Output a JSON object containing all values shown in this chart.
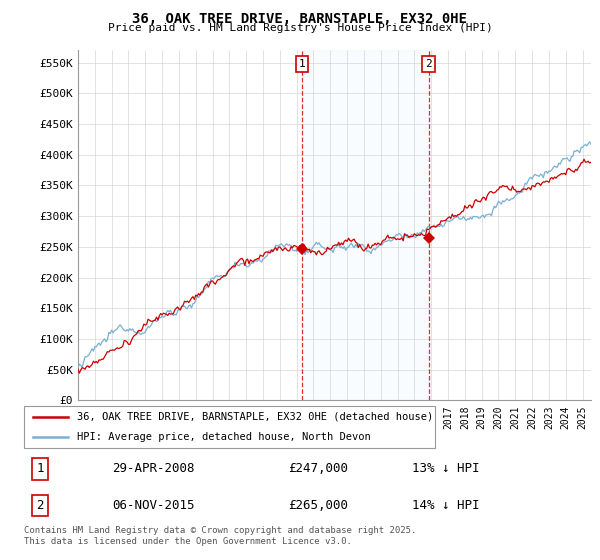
{
  "title": "36, OAK TREE DRIVE, BARNSTAPLE, EX32 0HE",
  "subtitle": "Price paid vs. HM Land Registry's House Price Index (HPI)",
  "ylabel_ticks": [
    "£0",
    "£50K",
    "£100K",
    "£150K",
    "£200K",
    "£250K",
    "£300K",
    "£350K",
    "£400K",
    "£450K",
    "£500K",
    "£550K"
  ],
  "ytick_values": [
    0,
    50000,
    100000,
    150000,
    200000,
    250000,
    300000,
    350000,
    400000,
    450000,
    500000,
    550000
  ],
  "ylim": [
    0,
    570000
  ],
  "xlim_start": 1995.0,
  "xlim_end": 2025.5,
  "hpi_color": "#7bafd4",
  "hpi_shade_color": "#ddeeff",
  "price_color": "#cc0000",
  "vline_color": "#cc0000",
  "sale1_x": 2008.33,
  "sale1_y": 247000,
  "sale1_label": "1",
  "sale2_x": 2015.84,
  "sale2_y": 265000,
  "sale2_label": "2",
  "legend_line1": "36, OAK TREE DRIVE, BARNSTAPLE, EX32 0HE (detached house)",
  "legend_line2": "HPI: Average price, detached house, North Devon",
  "table_row1_num": "1",
  "table_row1_date": "29-APR-2008",
  "table_row1_price": "£247,000",
  "table_row1_hpi": "13% ↓ HPI",
  "table_row2_num": "2",
  "table_row2_date": "06-NOV-2015",
  "table_row2_price": "£265,000",
  "table_row2_hpi": "14% ↓ HPI",
  "footnote": "Contains HM Land Registry data © Crown copyright and database right 2025.\nThis data is licensed under the Open Government Licence v3.0.",
  "background_color": "#ffffff",
  "grid_color": "#cccccc"
}
